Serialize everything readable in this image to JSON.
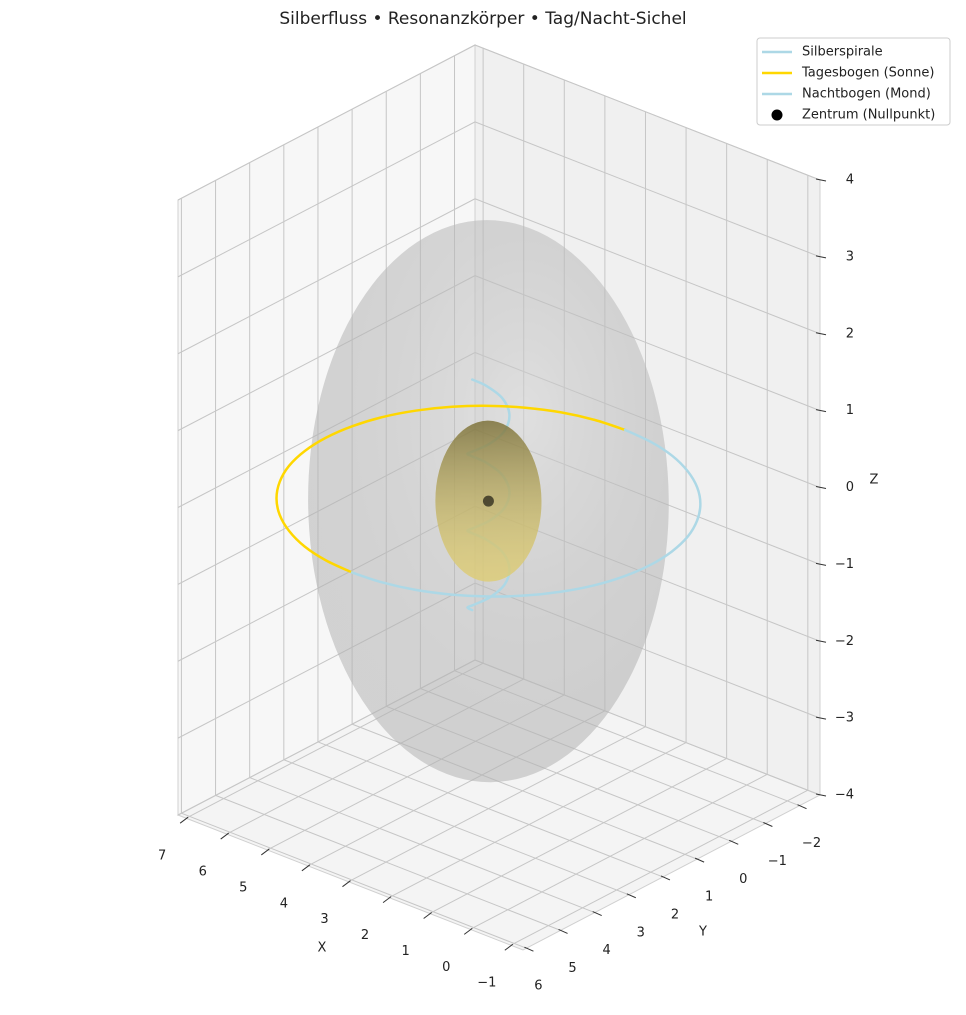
{
  "chart_data": {
    "type": "line3d",
    "title": "Silberfluss • Resonanzkörper • Tag/Nacht-Sichel",
    "xlabel": "X",
    "ylabel": "Y",
    "zlabel": "Z",
    "xlim": [
      -1.3,
      7.2
    ],
    "ylim": [
      -2.6,
      6.1
    ],
    "zlim": [
      -4,
      4
    ],
    "xticks": [
      {
        "value": -1,
        "label": "−1"
      },
      0,
      1,
      2,
      3,
      4,
      5,
      6,
      7
    ],
    "yticks": [
      {
        "value": -2,
        "label": "−2"
      },
      {
        "value": -1,
        "label": "−1"
      },
      0,
      1,
      2,
      3,
      4,
      5,
      6
    ],
    "zticks": [
      {
        "value": -4,
        "label": "−4"
      },
      {
        "value": -3,
        "label": "−3"
      },
      {
        "value": -2,
        "label": "−2"
      },
      {
        "value": -1,
        "label": "−1"
      },
      0,
      1,
      2,
      3,
      4
    ],
    "grid": true,
    "legend": "upper right",
    "surfaces": [
      {
        "center": [
          3,
          2,
          0
        ],
        "radii": [
          3.4,
          3.4,
          3.5
        ],
        "color": "#c4c4c4",
        "alpha": 0.55
      },
      {
        "center": [
          3,
          2,
          0
        ],
        "radii": [
          1,
          1,
          1
        ],
        "color": "#d9c45a",
        "alpha": 0.8
      }
    ],
    "series": [
      {
        "name": "Silberspirale",
        "color": "#add8e6",
        "x": [
          3.4,
          3.28,
          3,
          2.72,
          2.6,
          2.72,
          3,
          3.28,
          3.4,
          3.28,
          3,
          2.72,
          2.6,
          2.72,
          3,
          3.28,
          3.4,
          3.28,
          3,
          2.72,
          2.6,
          2.72,
          3,
          3.28,
          3.4
        ],
        "y": [
          2,
          2.28,
          2.4,
          2.28,
          2,
          1.72,
          1.6,
          1.72,
          2,
          2.28,
          2.4,
          2.28,
          2,
          1.72,
          1.6,
          1.72,
          2,
          2.28,
          2.4,
          2.28,
          2,
          1.72,
          1.6,
          1.72,
          2
        ],
        "z": [
          -1.5,
          -1.375,
          -1.25,
          -1.125,
          -1,
          -0.875,
          -0.75,
          -0.625,
          -0.5,
          -0.375,
          -0.25,
          -0.125,
          0,
          0.125,
          0.25,
          0.375,
          0.5,
          0.625,
          0.75,
          0.875,
          1,
          1.125,
          1.25,
          1.375,
          1.5
        ]
      },
      {
        "name": "Tagesbogen (Sonne)",
        "color": "#ffd700",
        "x": [
          3,
          3.69,
          4.37,
          5,
          5.57,
          6.06,
          6.46,
          6.76,
          6.94,
          7,
          6.94,
          6.76,
          6.46,
          6.06,
          5.57,
          5,
          4.37,
          3.69,
          3
        ],
        "y": [
          -2,
          -1.94,
          -1.76,
          -1.46,
          -1.06,
          -0.57,
          0,
          0.63,
          1.31,
          2,
          2.69,
          3.37,
          4,
          4.57,
          5.06,
          5.46,
          5.76,
          5.94,
          6
        ],
        "z": [
          0,
          0,
          0,
          0,
          0,
          0,
          0,
          0,
          0,
          0,
          0,
          0,
          0,
          0,
          0,
          0,
          0,
          0,
          0
        ]
      },
      {
        "name": "Nachtbogen (Mond)",
        "color": "#add8e6",
        "x": [
          3,
          2.31,
          1.63,
          1,
          0.43,
          -0.06,
          -0.46,
          -0.76,
          -0.94,
          -1,
          -0.94,
          -0.76,
          -0.46,
          -0.06,
          0.43,
          1,
          1.63,
          2.31,
          3
        ],
        "y": [
          6,
          5.94,
          5.76,
          5.46,
          5.06,
          4.57,
          4,
          3.37,
          2.69,
          2,
          1.31,
          0.63,
          0,
          -0.57,
          -1.06,
          -1.46,
          -1.76,
          -1.94,
          -2
        ],
        "z": [
          0,
          0,
          0,
          0,
          0,
          0,
          0,
          0,
          0,
          0,
          0,
          0,
          0,
          0,
          0,
          0,
          0,
          0,
          0
        ]
      },
      {
        "name": "Zentrum (Nullpunkt)",
        "type": "scatter",
        "color": "#000000",
        "x": [
          3
        ],
        "y": [
          2
        ],
        "z": [
          0
        ]
      }
    ]
  }
}
